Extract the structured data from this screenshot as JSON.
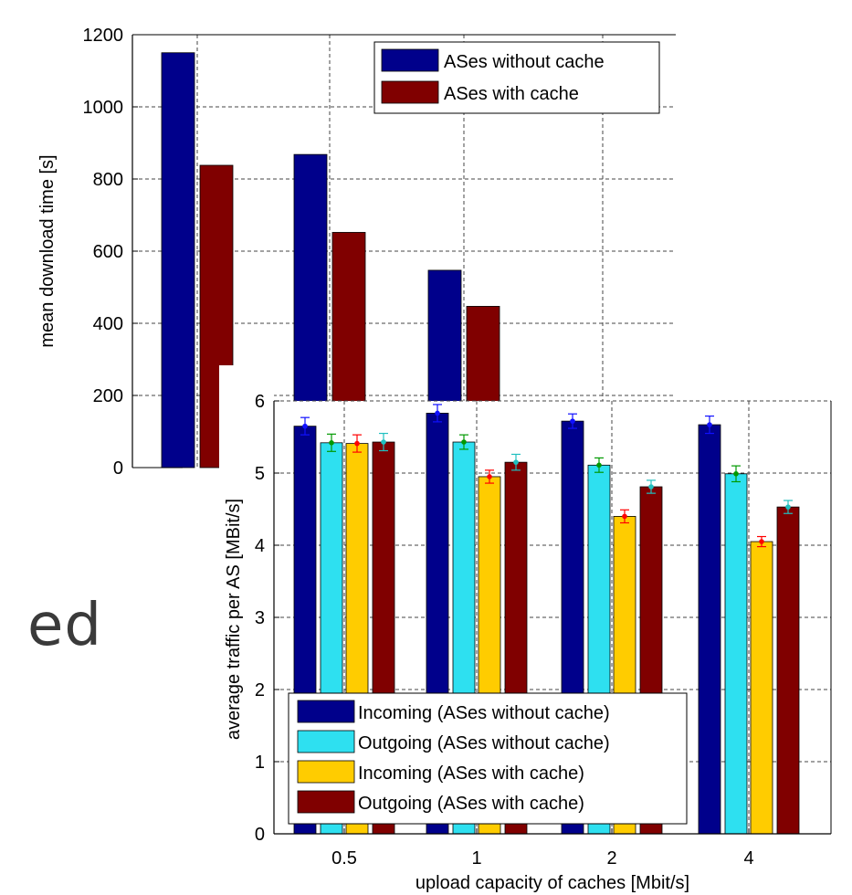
{
  "overlay_text": "ed",
  "chart_data": [
    {
      "type": "bar",
      "categories": [
        "0.5",
        "1",
        "2"
      ],
      "series": [
        {
          "name": "ASes without cache",
          "color": "#00008b",
          "values": [
            1150,
            868,
            547
          ]
        },
        {
          "name": "ASes with cache",
          "color": "#800000",
          "values": [
            838,
            652,
            447
          ]
        }
      ],
      "xlabel": "",
      "ylabel": "mean download time [s]",
      "ylim": [
        0,
        1200
      ],
      "yticks": [
        "0",
        "200",
        "400",
        "600",
        "800",
        "1000",
        "1200"
      ],
      "grid": true,
      "legend_position": "top-right"
    },
    {
      "type": "bar",
      "categories": [
        "0.5",
        "1",
        "2",
        "4"
      ],
      "series": [
        {
          "name": "Incoming (ASes without cache)",
          "color": "#00008b",
          "values": [
            5.65,
            5.83,
            5.72,
            5.67
          ],
          "errors": [
            0.12,
            0.12,
            0.1,
            0.12
          ],
          "marker": "#1010ff"
        },
        {
          "name": "Outgoing (ASes without cache)",
          "color": "#2ee0f0",
          "values": [
            5.42,
            5.43,
            5.11,
            4.99
          ],
          "errors": [
            0.12,
            0.1,
            0.1,
            0.11
          ],
          "marker": "#009900"
        },
        {
          "name": "Incoming (ASes with cache)",
          "color": "#ffcc00",
          "values": [
            5.41,
            4.95,
            4.4,
            4.05
          ],
          "errors": [
            0.12,
            0.09,
            0.09,
            0.07
          ],
          "marker": "#ff0000"
        },
        {
          "name": "Outgoing (ASes with cache)",
          "color": "#800000",
          "values": [
            5.43,
            5.15,
            4.81,
            4.53
          ],
          "errors": [
            0.12,
            0.11,
            0.09,
            0.09
          ],
          "marker": "#20c0c0"
        }
      ],
      "xlabel": "upload capacity of caches [Mbit/s]",
      "ylabel": "average traffic per AS [MBit/s]",
      "ylim": [
        0,
        6
      ],
      "yticks": [
        "0",
        "1",
        "2",
        "3",
        "4",
        "5",
        "6"
      ],
      "grid": true,
      "legend_position": "bottom-right"
    }
  ]
}
